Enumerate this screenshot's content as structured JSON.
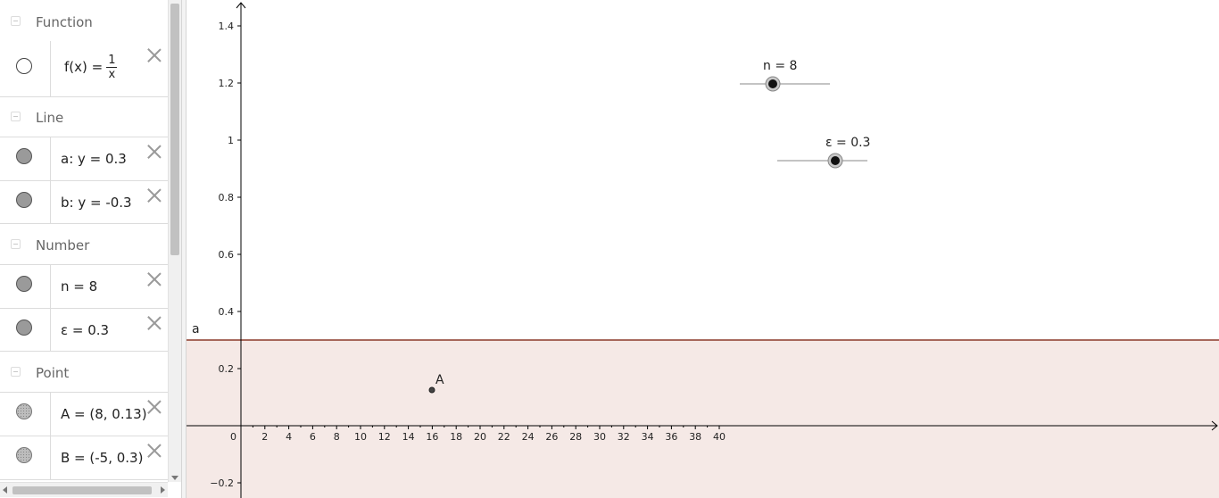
{
  "algebra": {
    "groups": [
      {
        "title": "Function",
        "items": [
          {
            "name": "f",
            "prefix": "f(x) =",
            "numerator": "1",
            "denominator": "x",
            "marble": "empty"
          }
        ]
      },
      {
        "title": "Line",
        "items": [
          {
            "text": "a: y = 0.3",
            "marble": "filled"
          },
          {
            "text": "b: y = -0.3",
            "marble": "filled"
          }
        ]
      },
      {
        "title": "Number",
        "items": [
          {
            "text": "n = 8",
            "marble": "filled"
          },
          {
            "text": "ε = 0.3",
            "marble": "filled"
          }
        ]
      },
      {
        "title": "Point",
        "items": [
          {
            "text": "A = (8, 0.13)",
            "marble": "dotted"
          },
          {
            "text": "B = (-5, 0.3)",
            "marble": "dotted"
          }
        ]
      }
    ]
  },
  "graphics": {
    "colors": {
      "line": "#8b3a2a",
      "band": "#f5e9e6",
      "axis": "#000000"
    },
    "x_ticks": [
      "0",
      "2",
      "4",
      "6",
      "8",
      "10",
      "12",
      "14",
      "16",
      "18",
      "20",
      "22",
      "24",
      "26",
      "28",
      "30",
      "32",
      "34",
      "36",
      "38",
      "40"
    ],
    "y_ticks": [
      "1.4",
      "1.2",
      "1",
      "0.8",
      "0.6",
      "0.4",
      "0.2",
      "−0.2"
    ],
    "line_label": "a",
    "point": {
      "label": "A",
      "x": 8,
      "y": 0.13
    },
    "sliders": [
      {
        "label": "n = 8"
      },
      {
        "label": "ε = 0.3"
      }
    ]
  }
}
